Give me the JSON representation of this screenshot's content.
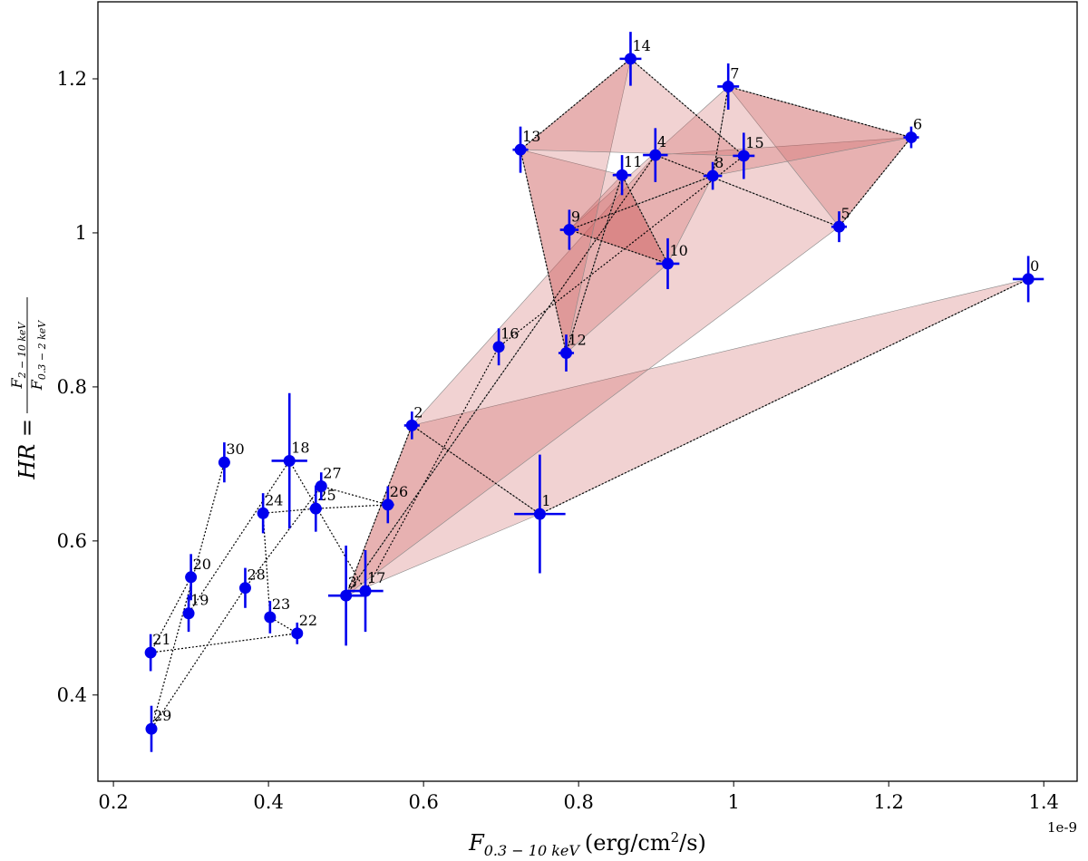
{
  "chart_data": {
    "type": "scatter",
    "xlabel": {
      "symbol": "F",
      "sub": "0.3 − 10 keV",
      "unit": "(erg/cm",
      "sup": "2",
      "tail": "/s)"
    },
    "ylabel": {
      "lead": "HR =",
      "num": "F",
      "num_sub": "2 − 10 keV",
      "den": "F",
      "den_sub": "0.3 − 2 keV"
    },
    "x_offset_label": "1e-9",
    "xlim": [
      0.18,
      1.443
    ],
    "ylim": [
      0.288,
      1.3
    ],
    "xticks": [
      0.2,
      0.4,
      0.6,
      0.8,
      1.0,
      1.2,
      1.4
    ],
    "yticks": [
      0.4,
      0.6,
      0.8,
      1.0,
      1.2
    ],
    "color": "#0000ee",
    "line_color": "#000000",
    "fill_color": "#cd5c5c",
    "labels": [
      "0",
      "1",
      "2",
      "3",
      "4",
      "5",
      "6",
      "7",
      "8",
      "9",
      "10",
      "11",
      "12",
      "13",
      "14",
      "15",
      "16",
      "17",
      "18",
      "19",
      "20",
      "21",
      "22",
      "23",
      "24",
      "25",
      "26",
      "27",
      "28",
      "29",
      "30"
    ],
    "x": [
      1.38,
      0.75,
      0.585,
      0.5,
      0.899,
      1.136,
      1.229,
      0.993,
      0.973,
      0.788,
      0.915,
      0.856,
      0.784,
      0.725,
      0.867,
      1.013,
      0.697,
      0.525,
      0.427,
      0.297,
      0.3,
      0.248,
      0.437,
      0.402,
      0.393,
      0.461,
      0.554,
      0.468,
      0.37,
      0.249,
      0.343
    ],
    "values": [
      0.94,
      0.635,
      0.75,
      0.529,
      1.101,
      1.008,
      1.124,
      1.19,
      1.074,
      1.004,
      0.96,
      1.075,
      0.844,
      1.108,
      1.226,
      1.1,
      0.852,
      0.535,
      0.704,
      0.506,
      0.553,
      0.455,
      0.48,
      0.501,
      0.636,
      0.642,
      0.647,
      0.671,
      0.539,
      0.356,
      0.702
    ],
    "xerr": [
      0.02,
      0.033,
      0.01,
      0.023,
      0.016,
      0.01,
      0.01,
      0.014,
      0.012,
      0.012,
      0.015,
      0.012,
      0.01,
      0.01,
      0.014,
      0.014,
      0.007,
      0.023,
      0.023,
      0.006,
      0.006,
      0.006,
      0.007,
      0.006,
      0.006,
      0.008,
      0.008,
      0.007,
      0.006,
      0.006,
      0.006
    ],
    "yerr": [
      0.03,
      0.077,
      0.018,
      0.065,
      0.035,
      0.02,
      0.014,
      0.03,
      0.018,
      0.026,
      0.033,
      0.026,
      0.024,
      0.03,
      0.035,
      0.03,
      0.024,
      0.053,
      0.088,
      0.024,
      0.03,
      0.024,
      0.014,
      0.021,
      0.026,
      0.03,
      0.024,
      0.018,
      0.026,
      0.03,
      0.026
    ]
  }
}
